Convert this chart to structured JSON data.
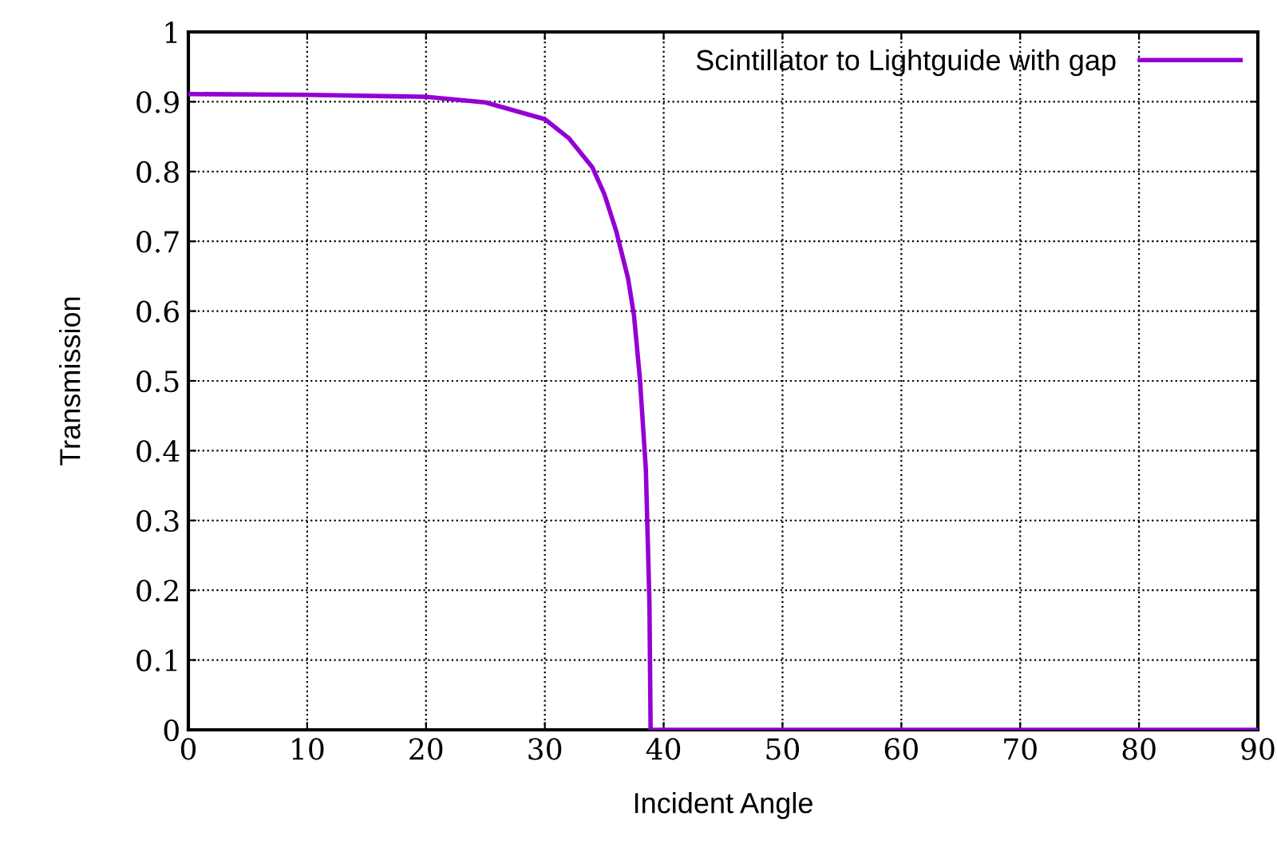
{
  "chart_data": {
    "type": "line",
    "xlabel": "Incident Angle",
    "ylabel": "Transmission",
    "x": [
      0,
      10,
      20,
      25,
      30,
      32,
      34,
      35,
      36,
      37,
      37.5,
      38,
      38.5,
      38.8,
      38.9,
      40,
      90
    ],
    "series": [
      {
        "name": "Scintillator to Lightguide with gap",
        "color": "#9400d3",
        "values": [
          0.911,
          0.91,
          0.907,
          0.899,
          0.875,
          0.848,
          0.806,
          0.768,
          0.715,
          0.647,
          0.594,
          0.503,
          0.373,
          0.183,
          0,
          0,
          0
        ]
      }
    ],
    "xlim": [
      0,
      90
    ],
    "xticks": [
      0,
      10,
      20,
      30,
      40,
      50,
      60,
      70,
      80,
      90
    ],
    "ylim": [
      0,
      1
    ],
    "yticks": [
      0,
      0.1,
      0.2,
      0.3,
      0.4,
      0.5,
      0.6,
      0.7,
      0.8,
      0.9,
      1
    ],
    "grid": true,
    "legend": "top right",
    "marker": "none",
    "line_style": "solid"
  }
}
